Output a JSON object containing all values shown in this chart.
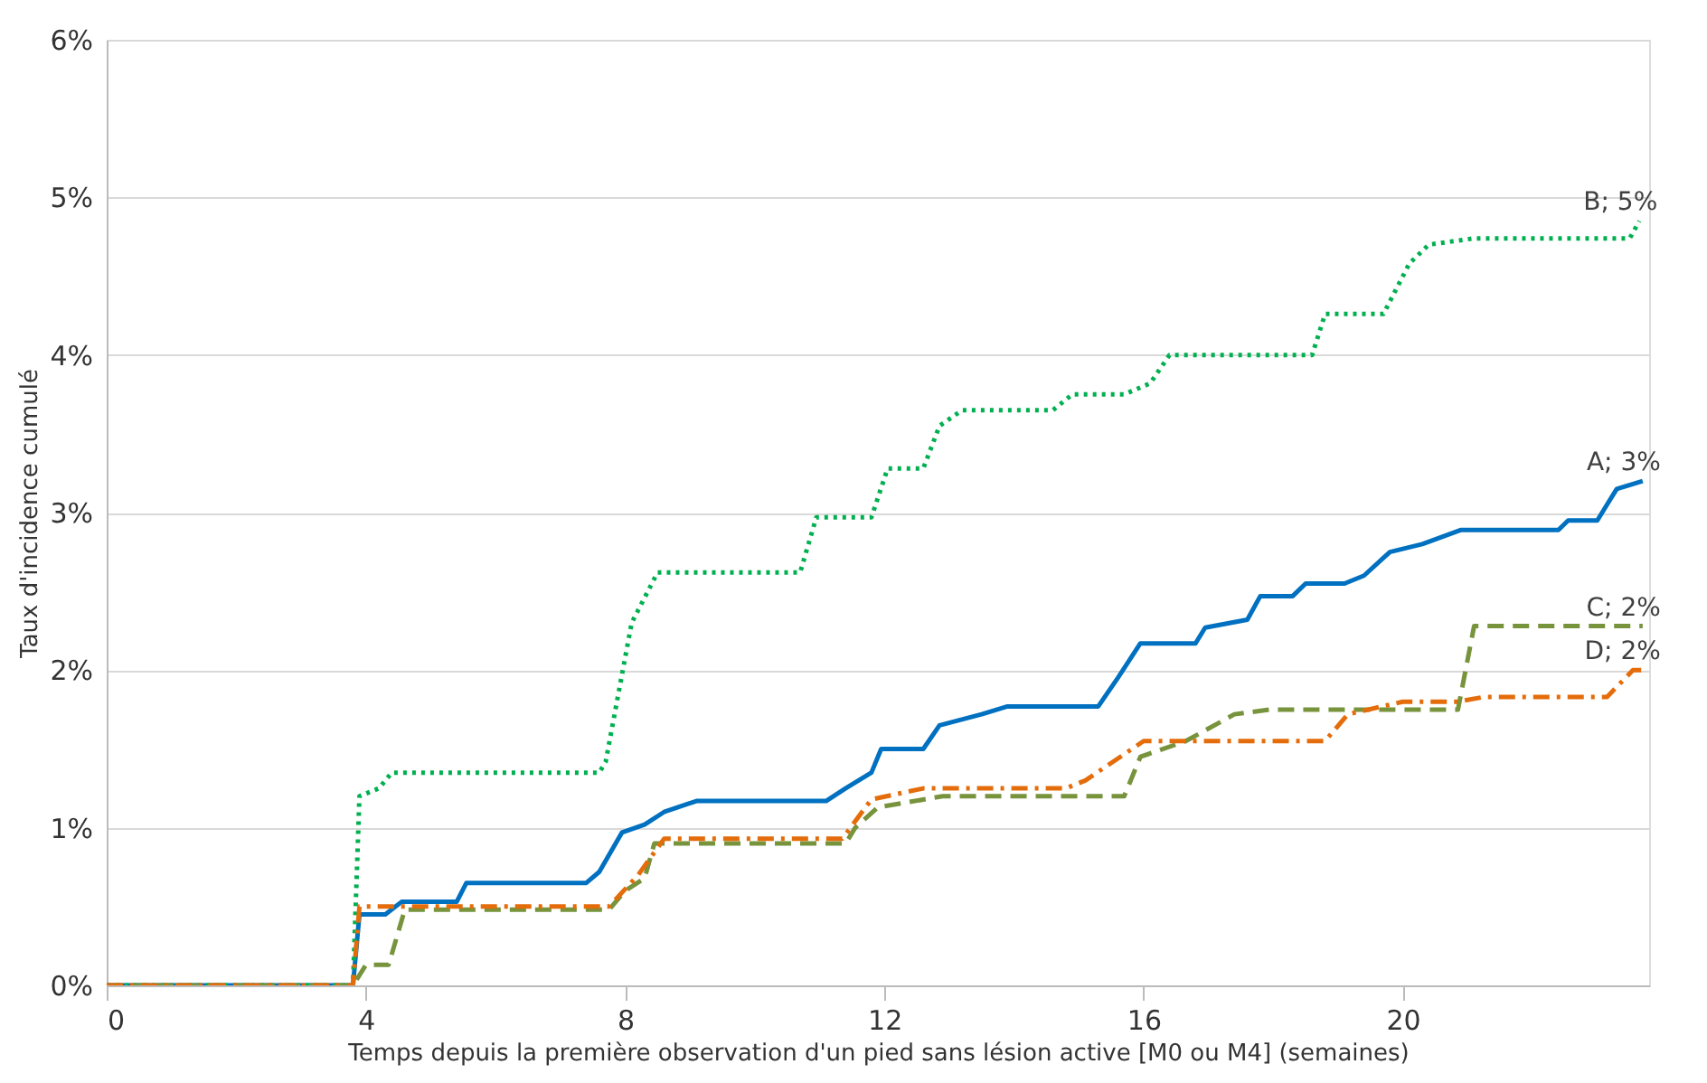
{
  "chart_data": {
    "type": "line",
    "xlabel": "Temps depuis la première observation d'un pied sans lésion active [M0 ou M4] (semaines)",
    "ylabel": "Taux d'incidence cumulé",
    "xlim": [
      0,
      23.8
    ],
    "xticks": [
      0,
      4,
      8,
      12,
      16,
      20
    ],
    "ylim": [
      0,
      6
    ],
    "yticks": [
      {
        "value": 0,
        "label": "0%"
      },
      {
        "value": 1,
        "label": "1%"
      },
      {
        "value": 2,
        "label": "2%"
      },
      {
        "value": 3,
        "label": "3%"
      },
      {
        "value": 4,
        "label": "4%"
      },
      {
        "value": 5,
        "label": "5%"
      },
      {
        "value": 6,
        "label": "6%"
      }
    ],
    "grid": "y",
    "legend": false,
    "series": [
      {
        "name": "A; 3%",
        "color": "#0070c0",
        "line_style": "solid",
        "x": [
          0,
          3.8,
          3.9,
          4.3,
          4.55,
          5.4,
          5.55,
          7.4,
          7.6,
          7.95,
          8.3,
          8.6,
          9.1,
          11.1,
          11.4,
          11.8,
          11.95,
          12.6,
          12.85,
          13.5,
          13.9,
          15.3,
          15.6,
          15.95,
          16.8,
          16.95,
          17.6,
          17.8,
          18.3,
          18.5,
          19.1,
          19.4,
          19.8,
          20.3,
          20.9,
          22.4,
          22.55,
          23.0,
          23.3,
          23.7
        ],
        "values": [
          0,
          0,
          0.45,
          0.45,
          0.53,
          0.53,
          0.65,
          0.65,
          0.72,
          0.97,
          1.02,
          1.1,
          1.17,
          1.17,
          1.25,
          1.35,
          1.5,
          1.5,
          1.65,
          1.72,
          1.77,
          1.77,
          1.95,
          2.17,
          2.17,
          2.27,
          2.32,
          2.47,
          2.47,
          2.55,
          2.55,
          2.6,
          2.75,
          2.8,
          2.89,
          2.89,
          2.95,
          2.95,
          3.15,
          3.2
        ]
      },
      {
        "name": "B; 5%",
        "color": "#00b050",
        "line_style": "dotted",
        "x": [
          0,
          3.8,
          3.9,
          4.2,
          4.4,
          7.6,
          7.7,
          8.1,
          8.25,
          8.5,
          10.7,
          10.95,
          11.8,
          12.05,
          12.6,
          12.85,
          13.2,
          14.6,
          14.9,
          15.7,
          16.1,
          16.4,
          18.6,
          18.8,
          19.7,
          20.1,
          20.4,
          21.1,
          23.5,
          23.65
        ],
        "values": [
          0,
          0,
          1.2,
          1.25,
          1.35,
          1.35,
          1.42,
          2.3,
          2.42,
          2.62,
          2.62,
          2.97,
          2.97,
          3.28,
          3.28,
          3.55,
          3.65,
          3.65,
          3.75,
          3.75,
          3.82,
          4.0,
          4.0,
          4.26,
          4.26,
          4.58,
          4.7,
          4.74,
          4.74,
          4.85
        ]
      },
      {
        "name": "C; 2%",
        "color": "#77933c",
        "line_style": "dashed",
        "x": [
          0,
          3.8,
          4.0,
          4.35,
          4.6,
          7.75,
          8.0,
          8.3,
          8.45,
          11.4,
          11.55,
          11.9,
          12.9,
          15.7,
          15.95,
          16.65,
          17.4,
          17.95,
          20.85,
          21.1,
          23.7
        ],
        "values": [
          0,
          0,
          0.13,
          0.13,
          0.48,
          0.48,
          0.6,
          0.68,
          0.9,
          0.9,
          1.0,
          1.13,
          1.2,
          1.2,
          1.45,
          1.55,
          1.72,
          1.75,
          1.75,
          2.28,
          2.28
        ]
      },
      {
        "name": "D; 2%",
        "color": "#e46c0a",
        "line_style": "dashdot",
        "x": [
          0,
          3.8,
          3.9,
          7.75,
          8.2,
          8.6,
          11.35,
          11.8,
          12.6,
          14.8,
          15.1,
          16.0,
          18.8,
          19.15,
          20.0,
          20.85,
          21.25,
          23.15,
          23.55,
          23.7
        ],
        "values": [
          0,
          0,
          0.5,
          0.5,
          0.7,
          0.93,
          0.93,
          1.18,
          1.25,
          1.25,
          1.3,
          1.55,
          1.55,
          1.72,
          1.8,
          1.8,
          1.83,
          1.83,
          2.0,
          2.0
        ]
      }
    ]
  }
}
